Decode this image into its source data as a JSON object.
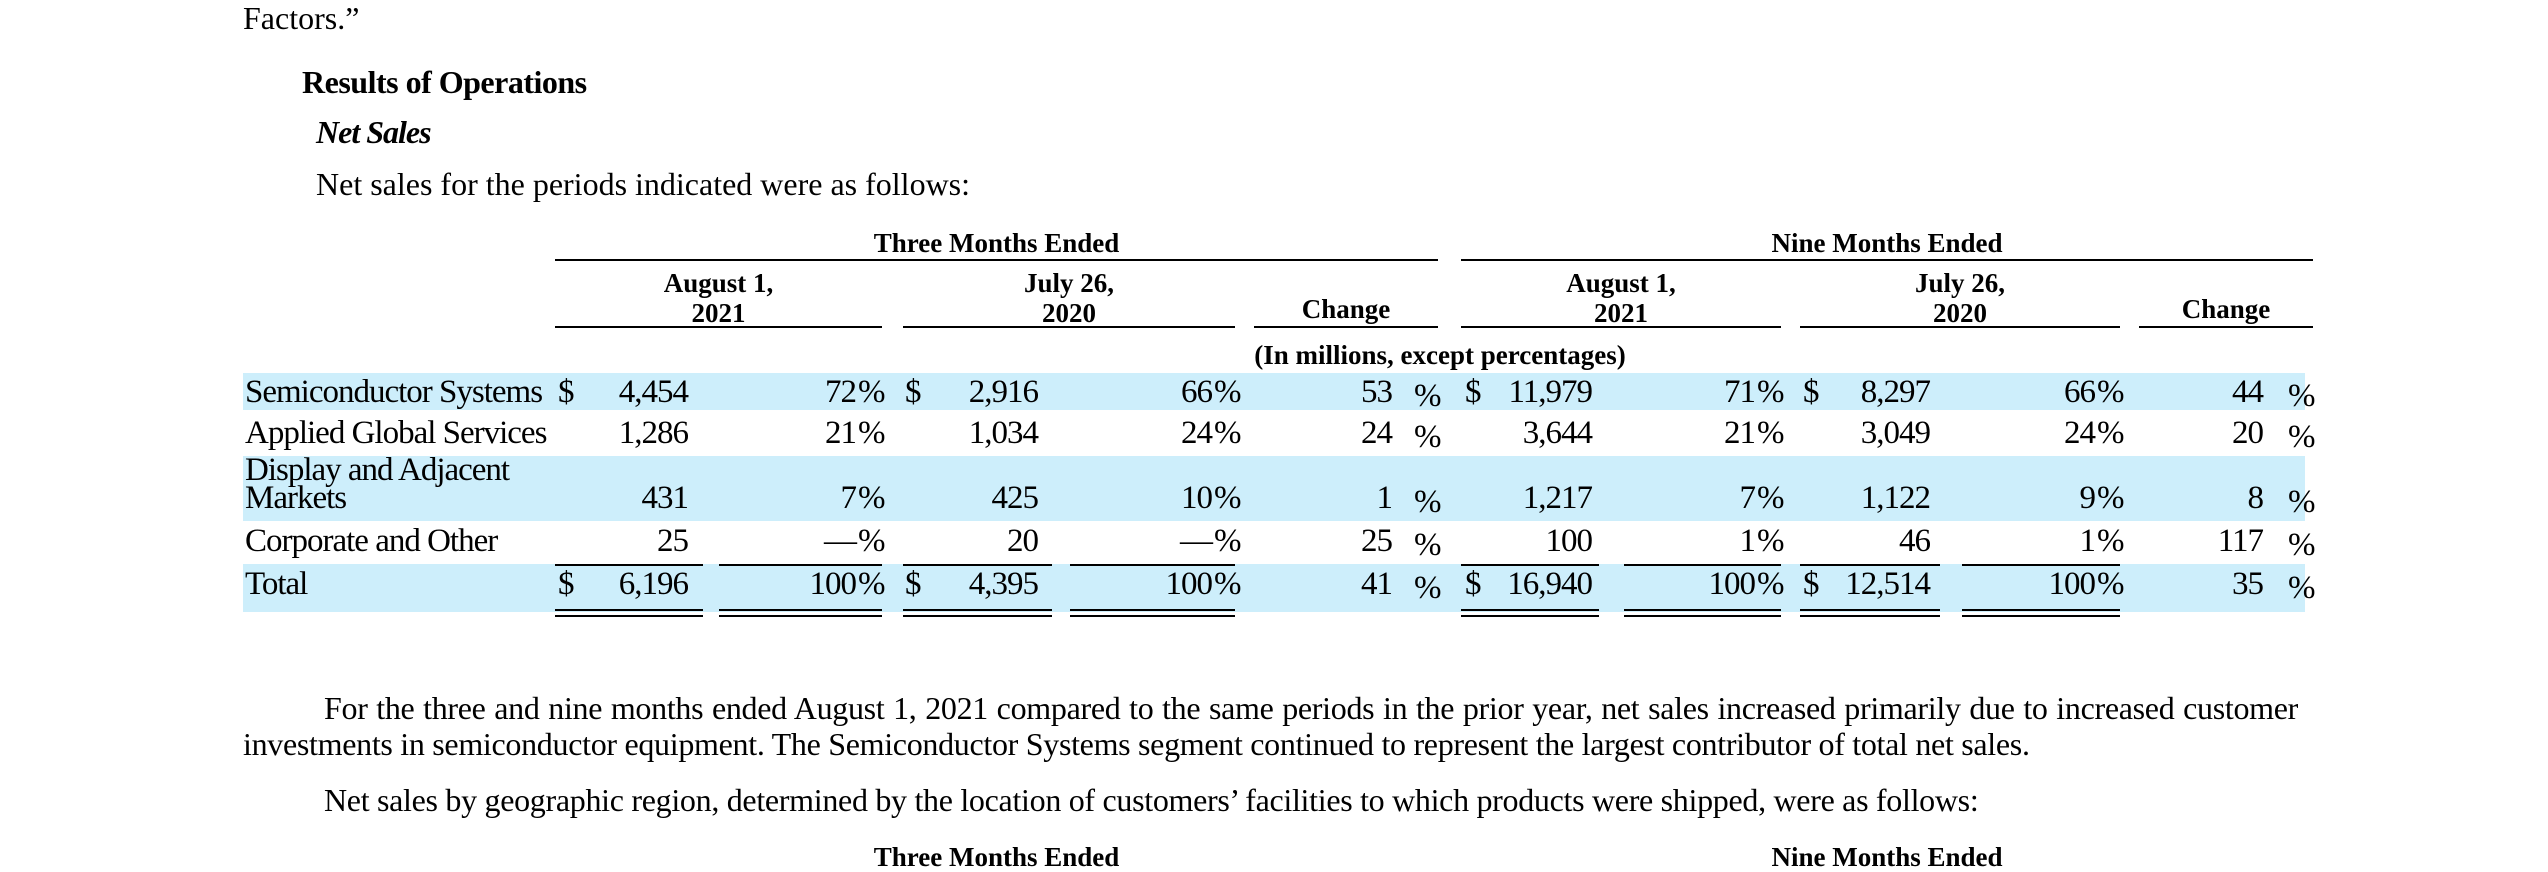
{
  "top_fragment": "Factors.”",
  "section_title": "Results of Operations",
  "subsection_title": "Net Sales",
  "intro": "Net sales for the periods indicated were as follows:",
  "table": {
    "group_headers": [
      "Three Months Ended",
      "Nine Months Ended"
    ],
    "col_headers": {
      "aug_l1": "August 1,",
      "aug_l2": "2021",
      "jul_l1": "July 26,",
      "jul_l2": "2020",
      "change": "Change"
    },
    "units": "(In millions, except percentages)",
    "rows": [
      {
        "label": "Semiconductor Systems",
        "c1": "4,454",
        "p1": "72",
        "c2": "2,916",
        "p2": "66",
        "ch1": "53",
        "c3": "11,979",
        "p3": "71",
        "c4": "8,297",
        "p4": "66",
        "ch2": "44"
      },
      {
        "label": "Applied Global Services",
        "c1": "1,286",
        "p1": "21",
        "c2": "1,034",
        "p2": "24",
        "ch1": "24",
        "c3": "3,644",
        "p3": "21",
        "c4": "3,049",
        "p4": "24",
        "ch2": "20"
      },
      {
        "label_l1": "Display and Adjacent",
        "label_l2": "Markets",
        "c1": "431",
        "p1": "7",
        "c2": "425",
        "p2": "10",
        "ch1": "1",
        "c3": "1,217",
        "p3": "7",
        "c4": "1,122",
        "p4": "9",
        "ch2": "8"
      },
      {
        "label": "Corporate and Other",
        "c1": "25",
        "p1": "—",
        "c2": "20",
        "p2": "—",
        "ch1": "25",
        "c3": "100",
        "p3": "1",
        "c4": "46",
        "p4": "1",
        "ch2": "117"
      },
      {
        "label": "Total",
        "c1": "6,196",
        "p1": "100",
        "c2": "4,395",
        "p2": "100",
        "ch1": "41",
        "c3": "16,940",
        "p3": "100",
        "c4": "12,514",
        "p4": "100",
        "ch2": "35"
      }
    ],
    "currency": "$",
    "percent": "%"
  },
  "paragraph1": "For the three and nine months ended August 1, 2021 compared to the same periods in the prior year, net sales increased primarily due to increased customer investments in semiconductor equipment. The Semiconductor Systems segment continued to represent the largest contributor of total net sales.",
  "paragraph2": "Net sales by geographic region, determined by the location of customers’ facilities to which products were shipped, were as follows:",
  "next_table_headers": [
    "Three Months Ended",
    "Nine Months Ended"
  ]
}
